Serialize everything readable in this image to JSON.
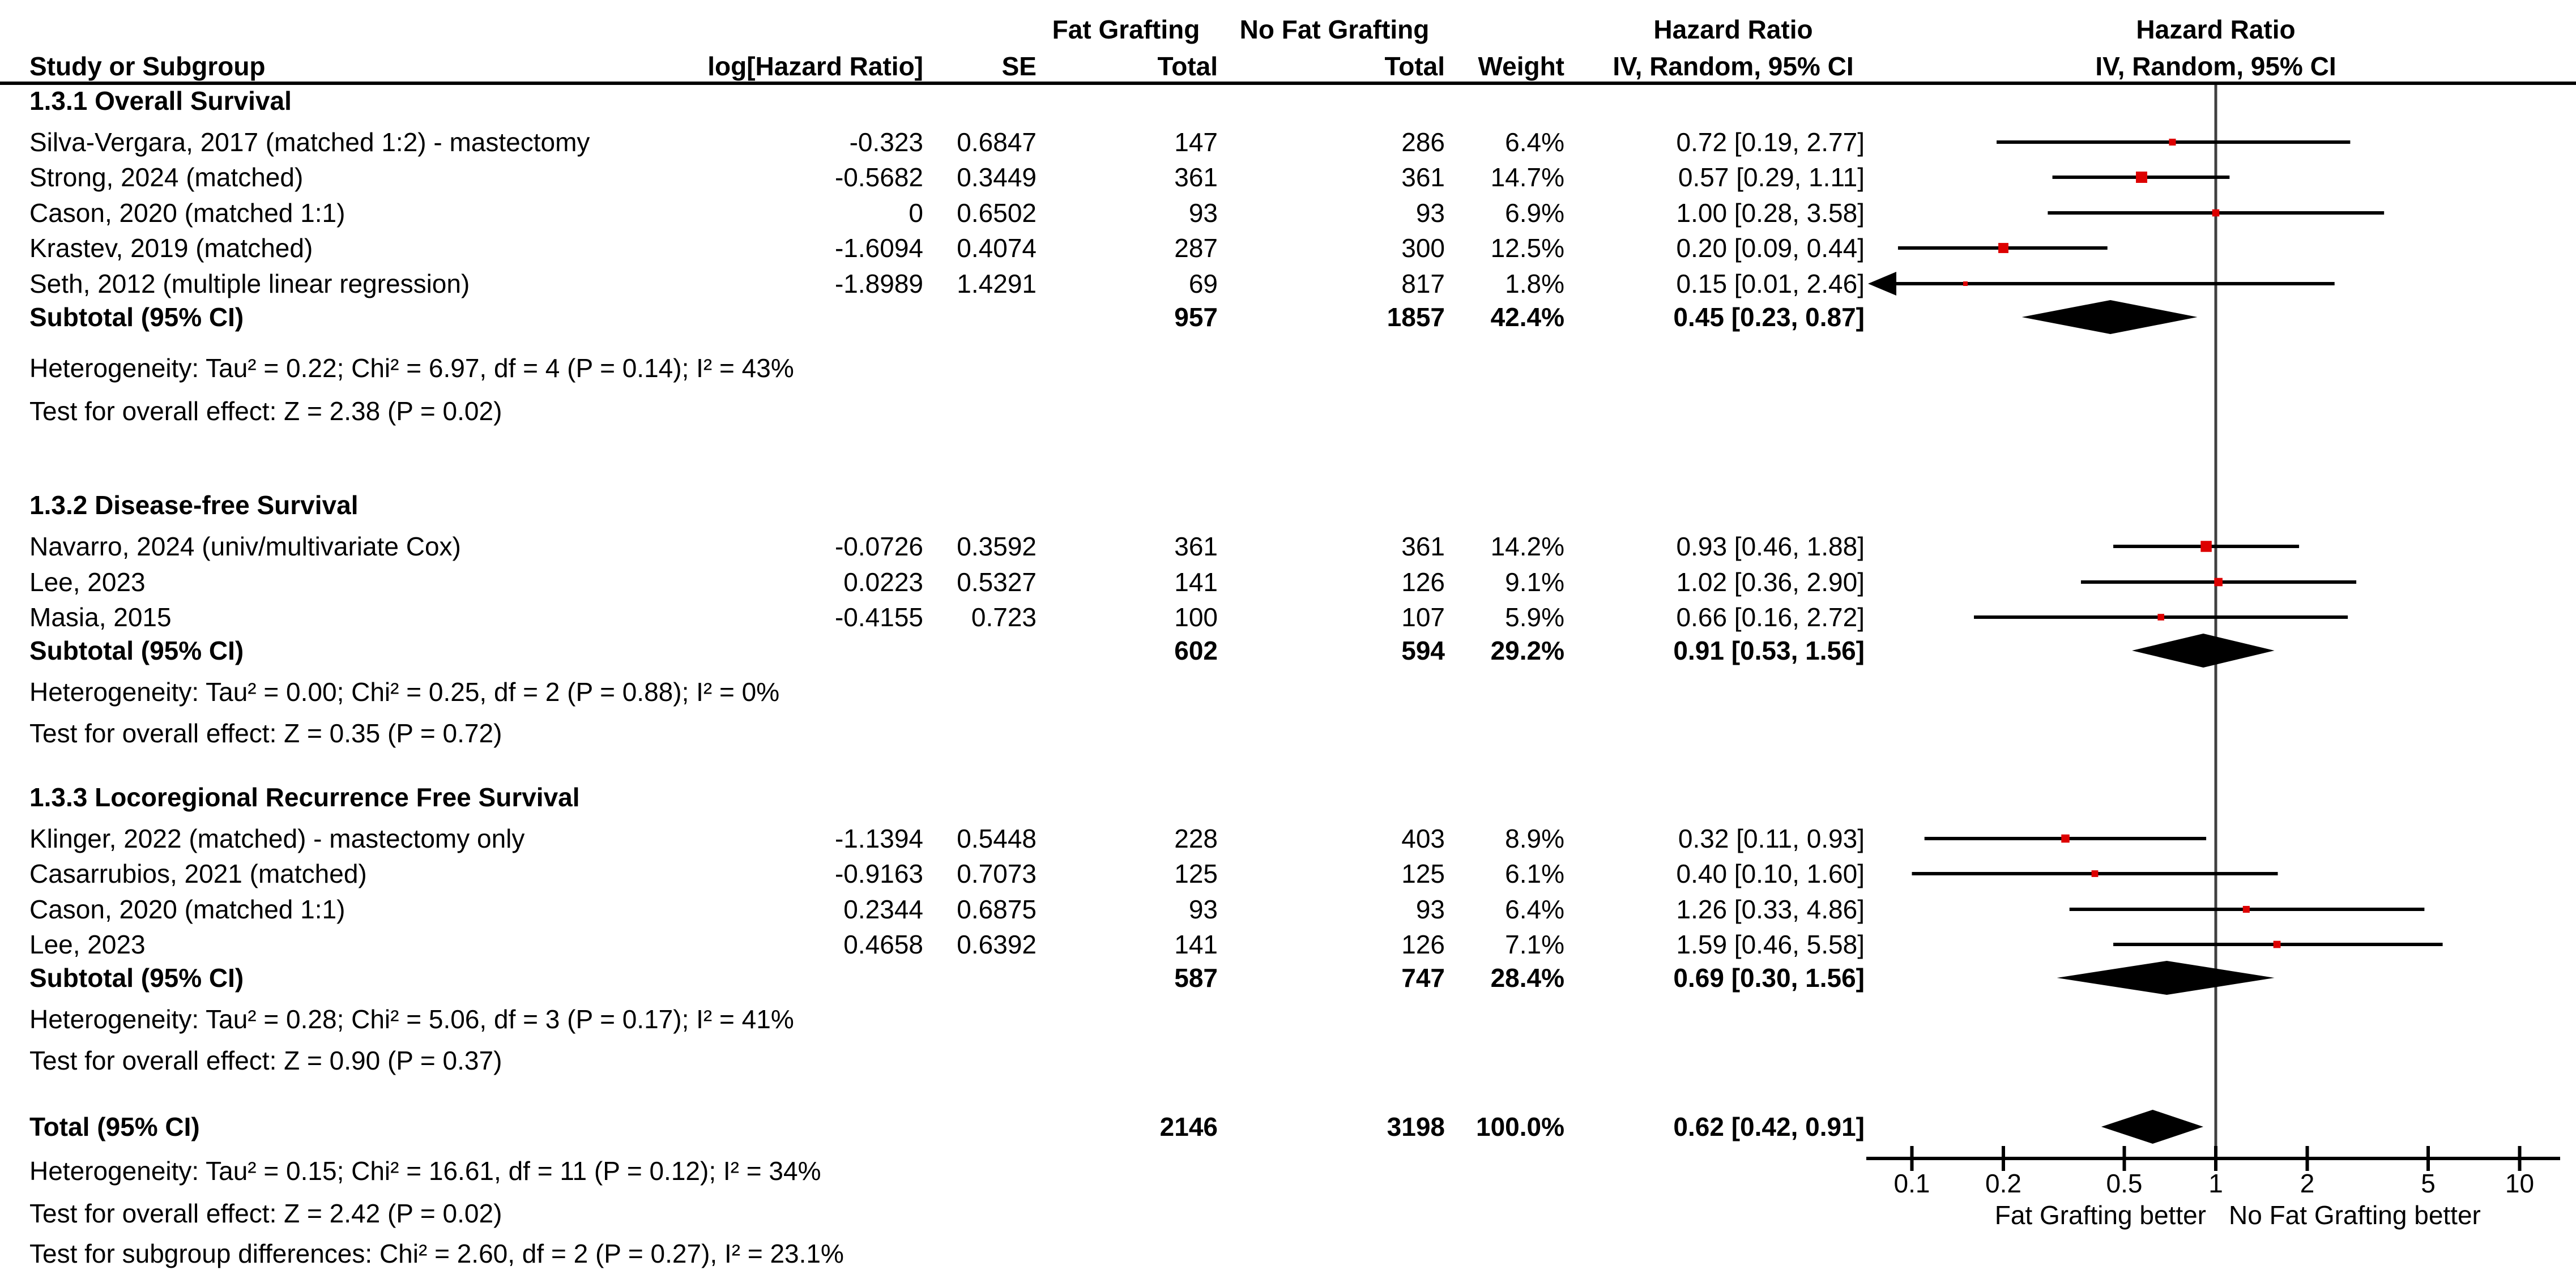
{
  "header": {
    "study_col": "Study or Subgroup",
    "loghr_col": "log[Hazard Ratio]",
    "se_col": "SE",
    "fg_group": "Fat Grafting",
    "nfg_group": "No Fat Grafting",
    "fg_total_col": "Total",
    "nfg_total_col": "Total",
    "weight_col": "Weight",
    "hr_col_title": "Hazard Ratio",
    "hr_col_sub": "IV, Random, 95% CI",
    "plot_col_title": "Hazard Ratio",
    "plot_col_sub": "IV, Random, 95% CI"
  },
  "colors": {
    "marker": "#dd0000",
    "ci_line": "#000000",
    "null_line": "#404040",
    "diamond": "#000000",
    "text": "#000000"
  },
  "chart_data": {
    "type": "forest",
    "x_scale": "log",
    "null_value": 1,
    "tick_values": [
      0.1,
      0.2,
      0.5,
      1,
      2,
      5,
      10
    ],
    "tick_labels": [
      "0.1",
      "0.2",
      "0.5",
      "1",
      "2",
      "5",
      "10"
    ],
    "left_caption": "Fat Grafting better",
    "right_caption": "No Fat Grafting better",
    "groups": [
      {
        "title": "1.3.1 Overall Survival",
        "studies": [
          {
            "label": "Silva-Vergara, 2017 (matched 1:2) - mastectomy",
            "loghr": "-0.323",
            "se": "0.6847",
            "fg_total": "147",
            "nfg_total": "286",
            "weight": "6.4%",
            "weight_pct": 6.4,
            "hr_text": "0.72 [0.19, 2.77]",
            "hr": 0.72,
            "lo": 0.19,
            "hi": 2.77
          },
          {
            "label": "Strong, 2024 (matched)",
            "loghr": "-0.5682",
            "se": "0.3449",
            "fg_total": "361",
            "nfg_total": "361",
            "weight": "14.7%",
            "weight_pct": 14.7,
            "hr_text": "0.57 [0.29, 1.11]",
            "hr": 0.57,
            "lo": 0.29,
            "hi": 1.11
          },
          {
            "label": "Cason, 2020 (matched 1:1)",
            "loghr": "0",
            "se": "0.6502",
            "fg_total": "93",
            "nfg_total": "93",
            "weight": "6.9%",
            "weight_pct": 6.9,
            "hr_text": "1.00 [0.28, 3.58]",
            "hr": 1.0,
            "lo": 0.28,
            "hi": 3.58
          },
          {
            "label": "Krastev, 2019 (matched)",
            "loghr": "-1.6094",
            "se": "0.4074",
            "fg_total": "287",
            "nfg_total": "300",
            "weight": "12.5%",
            "weight_pct": 12.5,
            "hr_text": "0.20 [0.09, 0.44]",
            "hr": 0.2,
            "lo": 0.09,
            "hi": 0.44
          },
          {
            "label": "Seth, 2012 (multiple linear regression)",
            "loghr": "-1.8989",
            "se": "1.4291",
            "fg_total": "69",
            "nfg_total": "817",
            "weight": "1.8%",
            "weight_pct": 1.8,
            "hr_text": "0.15 [0.01, 2.46]",
            "hr": 0.15,
            "lo": 0.01,
            "hi": 2.46
          }
        ],
        "subtotal": {
          "label": "Subtotal (95% CI)",
          "fg_total": "957",
          "nfg_total": "1857",
          "weight": "42.4%",
          "hr_text": "0.45 [0.23, 0.87]",
          "hr": 0.45,
          "lo": 0.23,
          "hi": 0.87
        },
        "heterogeneity": "Heterogeneity: Tau² = 0.22; Chi² = 6.97, df = 4 (P = 0.14); I² = 43%",
        "overall_effect": "Test for overall effect: Z = 2.38 (P = 0.02)"
      },
      {
        "title": "1.3.2 Disease-free Survival",
        "studies": [
          {
            "label": "Navarro, 2024 (univ/multivariate Cox)",
            "loghr": "-0.0726",
            "se": "0.3592",
            "fg_total": "361",
            "nfg_total": "361",
            "weight": "14.2%",
            "weight_pct": 14.2,
            "hr_text": "0.93 [0.46, 1.88]",
            "hr": 0.93,
            "lo": 0.46,
            "hi": 1.88
          },
          {
            "label": "Lee, 2023",
            "loghr": "0.0223",
            "se": "0.5327",
            "fg_total": "141",
            "nfg_total": "126",
            "weight": "9.1%",
            "weight_pct": 9.1,
            "hr_text": "1.02 [0.36, 2.90]",
            "hr": 1.02,
            "lo": 0.36,
            "hi": 2.9
          },
          {
            "label": "Masia, 2015",
            "loghr": "-0.4155",
            "se": "0.723",
            "fg_total": "100",
            "nfg_total": "107",
            "weight": "5.9%",
            "weight_pct": 5.9,
            "hr_text": "0.66 [0.16, 2.72]",
            "hr": 0.66,
            "lo": 0.16,
            "hi": 2.72
          }
        ],
        "subtotal": {
          "label": "Subtotal (95% CI)",
          "fg_total": "602",
          "nfg_total": "594",
          "weight": "29.2%",
          "hr_text": "0.91 [0.53, 1.56]",
          "hr": 0.91,
          "lo": 0.53,
          "hi": 1.56
        },
        "heterogeneity": "Heterogeneity: Tau² = 0.00; Chi² = 0.25, df = 2 (P = 0.88); I² = 0%",
        "overall_effect": "Test for overall effect: Z = 0.35 (P = 0.72)"
      },
      {
        "title": "1.3.3 Locoregional Recurrence Free Survival",
        "studies": [
          {
            "label": "Klinger, 2022 (matched) - mastectomy only",
            "loghr": "-1.1394",
            "se": "0.5448",
            "fg_total": "228",
            "nfg_total": "403",
            "weight": "8.9%",
            "weight_pct": 8.9,
            "hr_text": "0.32 [0.11, 0.93]",
            "hr": 0.32,
            "lo": 0.11,
            "hi": 0.93
          },
          {
            "label": "Casarrubios, 2021 (matched)",
            "loghr": "-0.9163",
            "se": "0.7073",
            "fg_total": "125",
            "nfg_total": "125",
            "weight": "6.1%",
            "weight_pct": 6.1,
            "hr_text": "0.40 [0.10, 1.60]",
            "hr": 0.4,
            "lo": 0.1,
            "hi": 1.6
          },
          {
            "label": "Cason, 2020 (matched 1:1)",
            "loghr": "0.2344",
            "se": "0.6875",
            "fg_total": "93",
            "nfg_total": "93",
            "weight": "6.4%",
            "weight_pct": 6.4,
            "hr_text": "1.26 [0.33, 4.86]",
            "hr": 1.26,
            "lo": 0.33,
            "hi": 4.86
          },
          {
            "label": "Lee, 2023",
            "loghr": "0.4658",
            "se": "0.6392",
            "fg_total": "141",
            "nfg_total": "126",
            "weight": "7.1%",
            "weight_pct": 7.1,
            "hr_text": "1.59 [0.46, 5.58]",
            "hr": 1.59,
            "lo": 0.46,
            "hi": 5.58
          }
        ],
        "subtotal": {
          "label": "Subtotal (95% CI)",
          "fg_total": "587",
          "nfg_total": "747",
          "weight": "28.4%",
          "hr_text": "0.69 [0.30, 1.56]",
          "hr": 0.69,
          "lo": 0.3,
          "hi": 1.56
        },
        "heterogeneity": "Heterogeneity: Tau² = 0.28; Chi² = 5.06, df = 3 (P = 0.17); I² = 41%",
        "overall_effect": "Test for overall effect: Z = 0.90 (P = 0.37)"
      }
    ],
    "total": {
      "label": "Total (95% CI)",
      "fg_total": "2146",
      "nfg_total": "3198",
      "weight": "100.0%",
      "hr_text": "0.62 [0.42, 0.91]",
      "hr": 0.62,
      "lo": 0.42,
      "hi": 0.91
    },
    "total_heterogeneity": "Heterogeneity: Tau² = 0.15; Chi² = 16.61, df = 11 (P = 0.12); I² = 34%",
    "total_overall_effect": "Test for overall effect: Z = 2.42 (P = 0.02)",
    "subgroup_differences": "Test for subgroup differences: Chi² = 2.60, df = 2 (P = 0.27), I² = 23.1%"
  }
}
